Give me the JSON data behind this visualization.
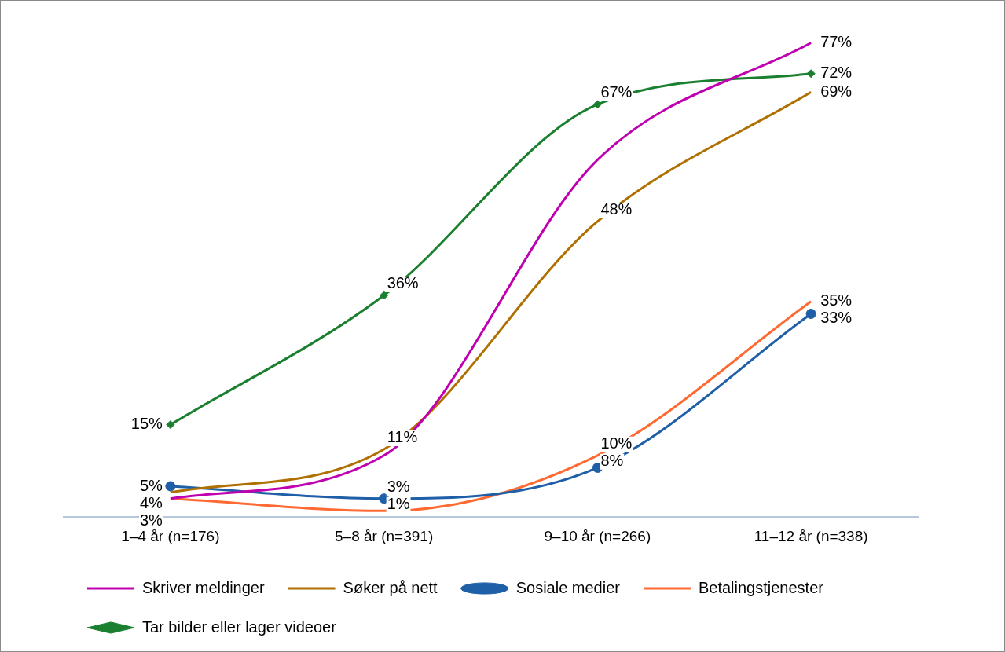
{
  "chart_data": {
    "type": "line",
    "categories": [
      "1–4 år (n=176)",
      "5–8 år (n=391)",
      "9–10 år (n=266)",
      "11–12 år (n=338)"
    ],
    "tick_labels": "x",
    "grid": false,
    "legend": "bottom",
    "series": [
      {
        "name": "Skriver meldinger",
        "color": "#c000b0",
        "marker": "none",
        "values": [
          3,
          10,
          58,
          77
        ],
        "value_labels": [
          null,
          null,
          null,
          "77%"
        ]
      },
      {
        "name": "Søker på nett",
        "color": "#b07000",
        "marker": "none",
        "values": [
          4,
          11,
          48,
          69
        ],
        "value_labels": [
          "4%",
          "11%",
          "48%",
          "69%"
        ]
      },
      {
        "name": "Sosiale medier",
        "color": "#1f5fa8",
        "marker": "circle",
        "values": [
          5,
          3,
          8,
          33
        ],
        "value_labels": [
          "5%",
          "3%",
          "8%",
          "33%"
        ]
      },
      {
        "name": "Betalingstjenester",
        "color": "#ff6a33",
        "marker": "none",
        "values": [
          3,
          1,
          10,
          35
        ],
        "value_labels": [
          "3%",
          "1%",
          "10%",
          "35%"
        ]
      },
      {
        "name": "Tar bilder eller lager videoer",
        "color": "#1a7f2e",
        "marker": "diamond",
        "values": [
          15,
          36,
          67,
          72
        ],
        "value_labels": [
          "15%",
          "36%",
          "67%",
          "72%"
        ]
      }
    ]
  }
}
